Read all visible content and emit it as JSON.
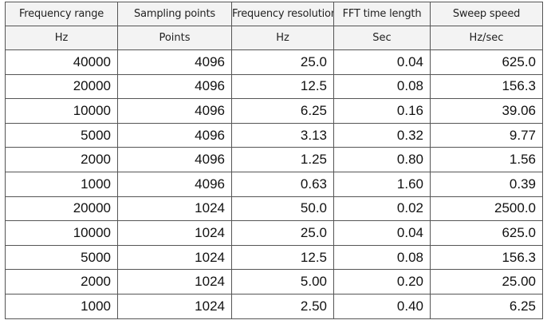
{
  "table": {
    "headers": [
      "Frequency range",
      "Sampling points",
      "Frequency resolution",
      "FFT time length",
      "Sweep speed"
    ],
    "units": [
      "Hz",
      "Points",
      "Hz",
      "Sec",
      "Hz/sec"
    ],
    "rows": [
      [
        "40000",
        "4096",
        "25.0",
        "0.04",
        "625.0"
      ],
      [
        "20000",
        "4096",
        "12.5",
        "0.08",
        "156.3"
      ],
      [
        "10000",
        "4096",
        "6.25",
        "0.16",
        "39.06"
      ],
      [
        "5000",
        "4096",
        "3.13",
        "0.32",
        "9.77"
      ],
      [
        "2000",
        "4096",
        "1.25",
        "0.80",
        "1.56"
      ],
      [
        "1000",
        "4096",
        "0.63",
        "1.60",
        "0.39"
      ],
      [
        "20000",
        "1024",
        "50.0",
        "0.02",
        "2500.0"
      ],
      [
        "10000",
        "1024",
        "25.0",
        "0.04",
        "625.0"
      ],
      [
        "5000",
        "1024",
        "12.5",
        "0.08",
        "156.3"
      ],
      [
        "2000",
        "1024",
        "5.00",
        "0.20",
        "25.00"
      ],
      [
        "1000",
        "1024",
        "2.50",
        "0.40",
        "6.25"
      ]
    ]
  }
}
